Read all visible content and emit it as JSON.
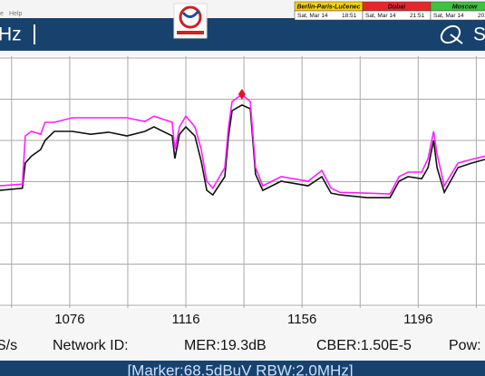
{
  "menu": [
    "e",
    "Help"
  ],
  "clocks": [
    {
      "city": "Berlin-Paris-Lučenec",
      "date": "Sat, Mar 14",
      "time": "18:51",
      "color": "#ffd200"
    },
    {
      "city": "Dubai",
      "date": "Sat, Mar 14",
      "time": "21:51",
      "color": "#e8262a"
    },
    {
      "city": "Moscow",
      "date": "Sat, Mar 14",
      "time": "20:",
      "color": "#3cc43c"
    }
  ],
  "header": {
    "left": "Hz",
    "right": "S"
  },
  "chart_data": {
    "type": "line",
    "x": [
      1051.9,
      1059.7,
      1060.7,
      1062.8,
      1066,
      1067.5,
      1070.7,
      1076.9,
      1083.2,
      1089.4,
      1095.7,
      1101.9,
      1105,
      1111.3,
      1112.2,
      1113.8,
      1116,
      1119.1,
      1121.3,
      1123.2,
      1125.3,
      1129.4,
      1130.7,
      1131.9,
      1135.3,
      1138.2,
      1140,
      1142.5,
      1148.8,
      1158.1,
      1162.8,
      1166,
      1169.1,
      1178.5,
      1186.3,
      1189.4,
      1192.5,
      1197.2,
      1199.4,
      1201.3,
      1202.5,
      1205,
      1209.7,
      1214.4,
      1219.1
    ],
    "series": [
      {
        "color": "#ff1fff",
        "values": [
          49.0,
          49.4,
          61.1,
          62.2,
          61.5,
          64.4,
          64.4,
          65.5,
          65.5,
          65.5,
          65.5,
          64.6,
          65.9,
          64.4,
          57.8,
          63.3,
          65.9,
          63.3,
          57.8,
          50.1,
          48.4,
          53.4,
          63.3,
          69.4,
          71.2,
          69.4,
          53.4,
          49.0,
          51.2,
          50.1,
          52.7,
          48.4,
          47.4,
          47.2,
          47.0,
          51.2,
          52.3,
          52.3,
          55.6,
          62.2,
          56.7,
          49.0,
          54.5,
          55.4,
          56.2
        ]
      },
      {
        "color": "#111111",
        "values": [
          47.9,
          48.4,
          54.5,
          56.2,
          57.8,
          60.0,
          62.2,
          62.2,
          61.5,
          62.0,
          61.1,
          62.2,
          63.3,
          61.1,
          55.6,
          61.5,
          63.3,
          61.1,
          54.9,
          47.9,
          46.8,
          51.2,
          61.1,
          67.2,
          68.6,
          67.7,
          51.8,
          47.9,
          50.1,
          49.0,
          51.2,
          47.2,
          46.8,
          46.1,
          46.1,
          50.1,
          51.2,
          50.7,
          53.4,
          60.0,
          53.4,
          47.4,
          53.4,
          54.5,
          55.4
        ]
      }
    ],
    "marker_index": 24,
    "marker_color": "#e8141e",
    "xlim": [
      1052,
      1219
    ],
    "ylim": [
      20,
      80
    ],
    "xticks": [
      {
        "value": 1056,
        "label": null
      },
      1076,
      {
        "value": 1096,
        "label": null
      },
      1116,
      {
        "value": 1136,
        "label": null
      },
      1156,
      {
        "value": 1176,
        "label": null
      },
      1196,
      {
        "value": 1216,
        "label": null
      }
    ],
    "yticks": [
      {
        "value": 20,
        "label": null
      },
      {
        "value": 30,
        "label": null
      },
      {
        "value": 40,
        "label": null
      },
      {
        "value": 50,
        "label": null
      },
      {
        "value": 60,
        "label": null
      },
      {
        "value": 70,
        "label": null
      },
      {
        "value": 80,
        "label": null
      }
    ],
    "grid": true
  },
  "status": [
    "S/s",
    "Network ID:",
    "MER:19.3dB",
    "CBER:1.50E-5",
    "Pow:"
  ],
  "footer": "[Marker:68.5dBuV RBW:2.0MHz]"
}
